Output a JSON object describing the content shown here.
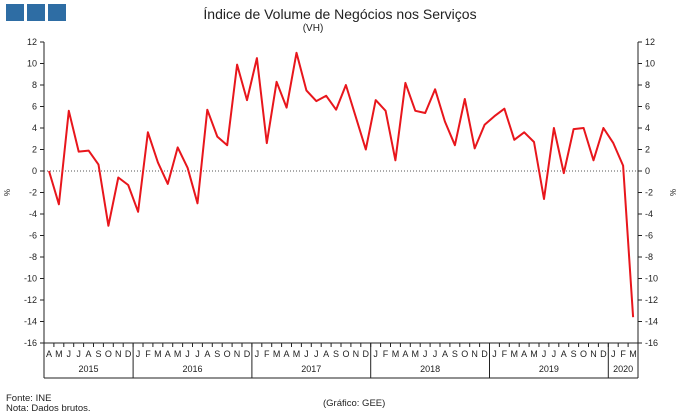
{
  "header": {
    "logo_icon": "ine-logo-squares",
    "title": "Índice de Volume de Negócios nos Serviços",
    "subtitle": "(VH)"
  },
  "footer": {
    "source": "Fonte: INE",
    "note": "Nota: Dados brutos.",
    "credit": "(Gráfico: GEE)"
  },
  "colors": {
    "line": "#e8161c",
    "axis": "#222222",
    "zero_line": "#555555"
  },
  "chart_data": {
    "type": "line",
    "title": "Índice de Volume de Negócios nos Serviços",
    "subtitle": "(VH)",
    "ylabel": "%",
    "ylabel_right": "%",
    "ylim": [
      -16,
      12
    ],
    "yticks": [
      12,
      10,
      8,
      6,
      4,
      2,
      0,
      -2,
      -4,
      -6,
      -8,
      -10,
      -12,
      -14,
      -16
    ],
    "grid": false,
    "zero_line": "dotted",
    "months": [
      "A",
      "M",
      "J",
      "J",
      "A",
      "S",
      "O",
      "N",
      "D",
      "J",
      "F",
      "M",
      "A",
      "M",
      "J",
      "J",
      "A",
      "S",
      "O",
      "N",
      "D",
      "J",
      "F",
      "M",
      "A",
      "M",
      "J",
      "J",
      "A",
      "S",
      "O",
      "N",
      "D",
      "J",
      "F",
      "M",
      "A",
      "M",
      "J",
      "J",
      "A",
      "S",
      "O",
      "N",
      "D",
      "J",
      "F",
      "M",
      "A",
      "M",
      "J",
      "J",
      "A",
      "S",
      "O",
      "N",
      "D",
      "J",
      "F",
      "M"
    ],
    "years": [
      {
        "label": "2015",
        "start": 0,
        "count": 9
      },
      {
        "label": "2016",
        "start": 9,
        "count": 12
      },
      {
        "label": "2017",
        "start": 21,
        "count": 12
      },
      {
        "label": "2018",
        "start": 33,
        "count": 12
      },
      {
        "label": "2019",
        "start": 45,
        "count": 12
      },
      {
        "label": "2020",
        "start": 57,
        "count": 3
      }
    ],
    "series": [
      {
        "values": [
          0.0,
          -3.1,
          5.6,
          1.8,
          1.9,
          0.6,
          -5.1,
          -0.6,
          -1.3,
          -3.8,
          3.6,
          0.8,
          -1.2,
          2.2,
          0.3,
          -3.0,
          5.7,
          3.2,
          2.4,
          9.9,
          6.6,
          10.5,
          2.6,
          8.3,
          5.9,
          11.0,
          7.5,
          6.5,
          7.0,
          5.7,
          8.0,
          5.0,
          2.0,
          6.6,
          5.6,
          1.0,
          8.2,
          5.6,
          5.4,
          7.6,
          4.6,
          2.4,
          6.7,
          2.1,
          4.3,
          5.1,
          5.8,
          2.9,
          3.6,
          2.7,
          -2.6,
          4.0,
          -0.2,
          3.9,
          4.0,
          1.0,
          4.0,
          2.6,
          0.5,
          -13.6
        ]
      }
    ]
  }
}
